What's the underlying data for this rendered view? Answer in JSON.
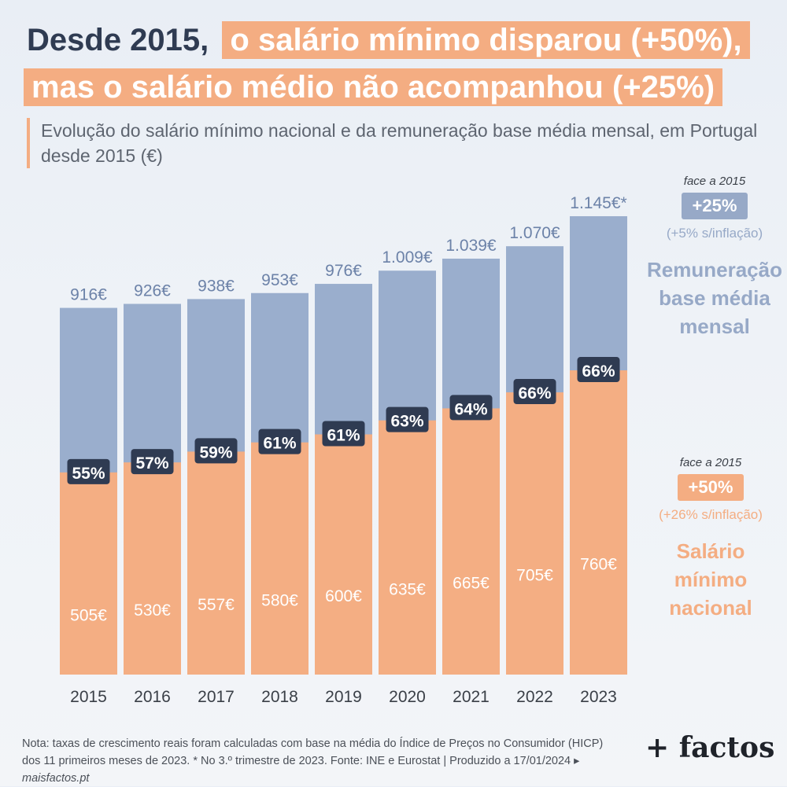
{
  "title": {
    "line1_lead": "Desde 2015,",
    "line1_highlight": "o salário mínimo disparou (+50%),",
    "line2_highlight": "mas o salário médio não acompanhou (+25%)"
  },
  "subtitle": "Evolução do salário mínimo nacional e da remuneração base média mensal, em Portugal desde 2015 (€)",
  "chart_data": {
    "type": "bar",
    "stacking": "overlay",
    "categories": [
      "2015",
      "2016",
      "2017",
      "2018",
      "2019",
      "2020",
      "2021",
      "2022",
      "2023"
    ],
    "series": [
      {
        "name": "Remuneração base média mensal",
        "color": "#9aaecd",
        "values": [
          916,
          926,
          938,
          953,
          976,
          1009,
          1039,
          1070,
          1145
        ],
        "labels": [
          "916€",
          "926€",
          "938€",
          "953€",
          "976€",
          "1.009€",
          "1.039€",
          "1.070€",
          "1.145€*"
        ]
      },
      {
        "name": "Salário mínimo nacional",
        "color": "#f4ae83",
        "values": [
          505,
          530,
          557,
          580,
          600,
          635,
          665,
          705,
          760
        ],
        "labels": [
          "505€",
          "530€",
          "557€",
          "580€",
          "600€",
          "635€",
          "665€",
          "705€",
          "760€"
        ]
      }
    ],
    "ratio_labels": [
      "55%",
      "57%",
      "59%",
      "61%",
      "61%",
      "63%",
      "64%",
      "66%",
      "66%"
    ],
    "ylim": [
      0,
      1145
    ],
    "grid": false,
    "legend_placement": "right"
  },
  "sidebar": {
    "avg": {
      "face": "face a 2015",
      "badge": "+25%",
      "sub": "(+5% s/inflação)",
      "label": "Remuneração base média mensal"
    },
    "min": {
      "face": "face a 2015",
      "badge": "+50%",
      "sub": "(+26% s/inflação)",
      "label": "Salário mínimo nacional"
    }
  },
  "note": {
    "text": "Nota: taxas de crescimento reais foram calculadas com base na média do Índice de Preços no Consumidor (HICP) dos 11 primeiros meses de 2023. * No 3.º trimestre de 2023. Fonte: INE e Eurostat | Produzido a 17/01/2024 ▸",
    "source": "maisfactos.pt"
  },
  "logo": "+ factos"
}
